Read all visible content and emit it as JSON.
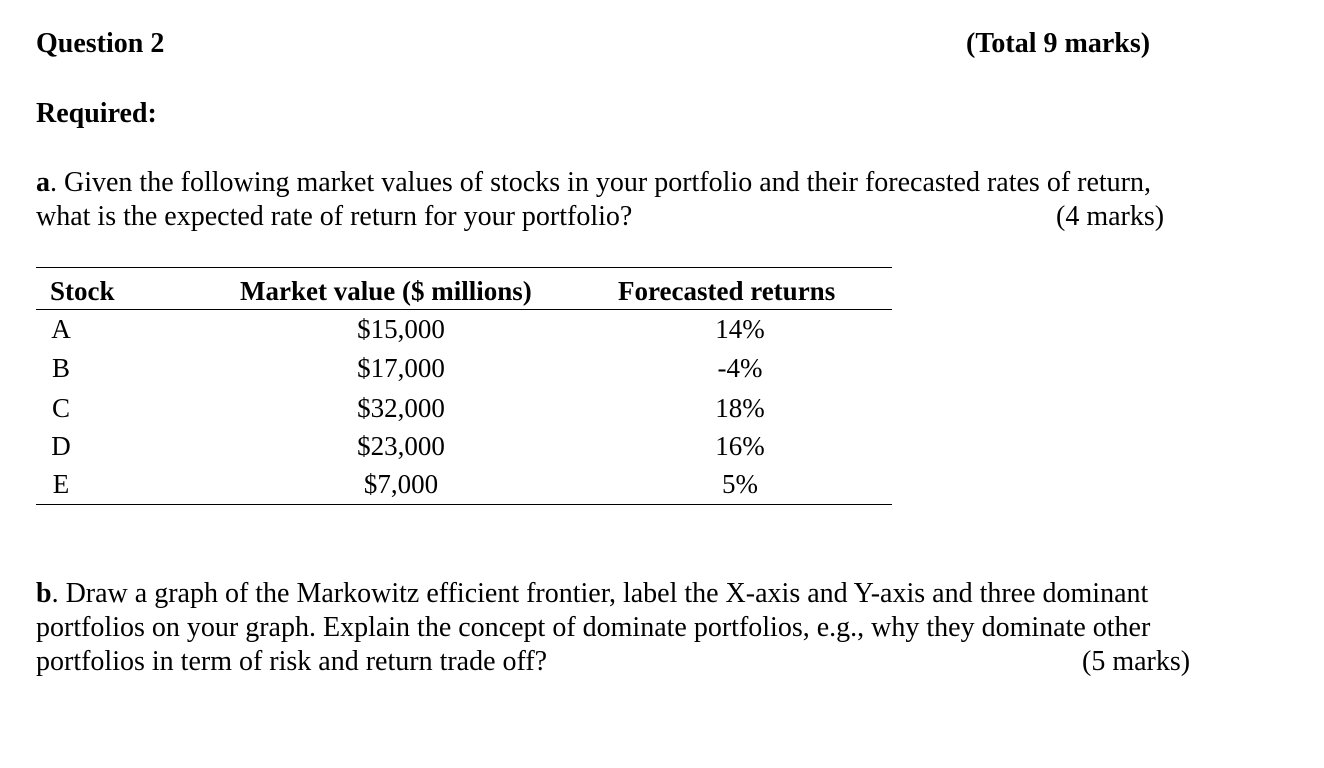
{
  "question": {
    "title": "Question 2",
    "total": "(Total 9 marks)",
    "required": "Required:"
  },
  "part_a": {
    "label": "a",
    "line1": ". Given the following market values of stocks in your portfolio and their forecasted rates of return,",
    "line2": "what is the expected rate of return for your portfolio?",
    "marks": "(4 marks)"
  },
  "table": {
    "headers": [
      "Stock",
      "Market value ($ millions)",
      "Forecasted returns"
    ],
    "rows": [
      [
        "A",
        "$15,000",
        "14%"
      ],
      [
        "B",
        "$17,000",
        "-4%"
      ],
      [
        "C",
        "$32,000",
        "18%"
      ],
      [
        "D",
        "$23,000",
        "16%"
      ],
      [
        "E",
        "$7,000",
        "5%"
      ]
    ]
  },
  "part_b": {
    "label": "b",
    "line1": ". Draw a graph of the Markowitz efficient frontier, label the X-axis and Y-axis and three dominant",
    "line2": "portfolios on your graph. Explain the concept of dominate portfolios, e.g., why they dominate other",
    "line3": "portfolios in term of risk and return trade off?",
    "marks": "(5 marks)"
  }
}
